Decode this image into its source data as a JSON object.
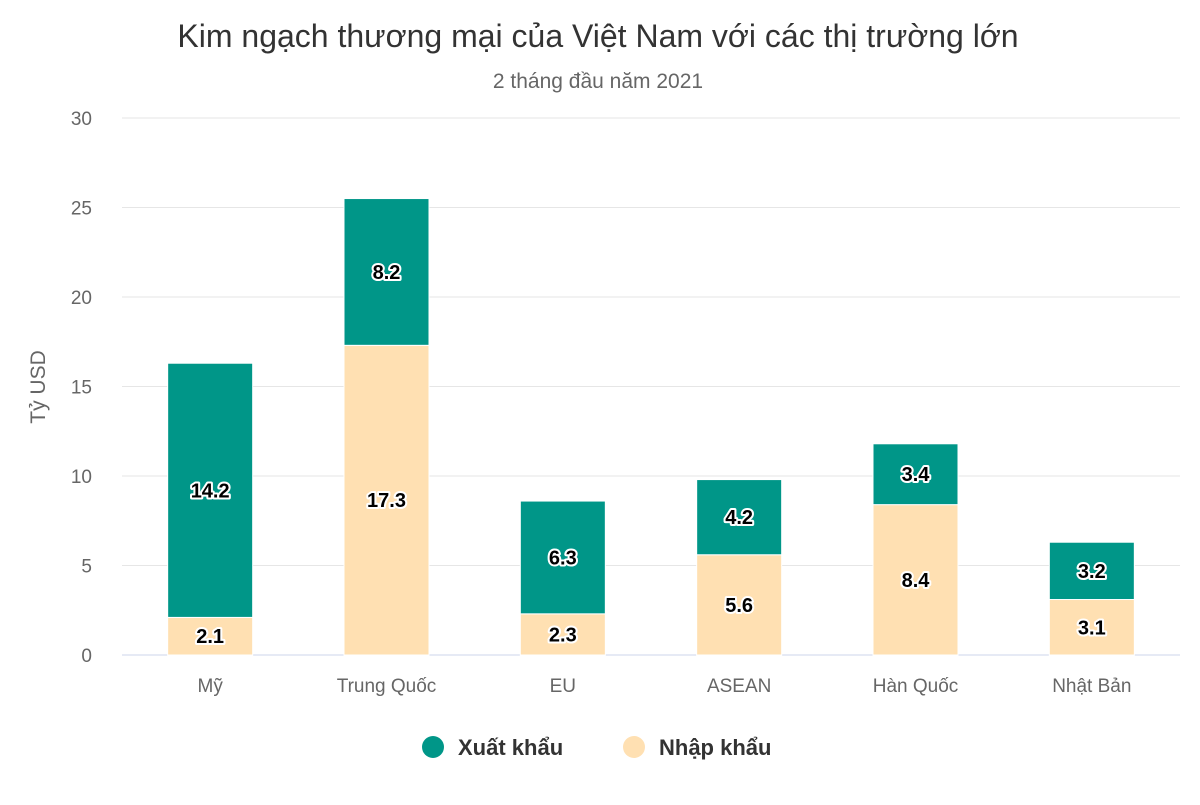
{
  "chart_data": {
    "type": "bar",
    "stacked": true,
    "title": "Kim ngạch thương mại của Việt Nam với các thị trường lớn",
    "subtitle": "2 tháng đầu năm 2021",
    "xlabel": "",
    "ylabel": "Tỷ USD",
    "ylim": [
      0,
      30
    ],
    "yticks": [
      0,
      5,
      10,
      15,
      20,
      25,
      30
    ],
    "grid": true,
    "legend": "bottom",
    "categories": [
      "Mỹ",
      "Trung Quốc",
      "EU",
      "ASEAN",
      "Hàn Quốc",
      "Nhật Bản"
    ],
    "series": [
      {
        "name": "Xuất khẩu",
        "color": "#009688",
        "values": [
          14.2,
          8.2,
          6.3,
          4.2,
          3.4,
          3.2
        ]
      },
      {
        "name": "Nhập khẩu",
        "color": "#FFE0B2",
        "values": [
          2.1,
          17.3,
          2.3,
          5.6,
          8.4,
          3.1
        ]
      }
    ]
  }
}
